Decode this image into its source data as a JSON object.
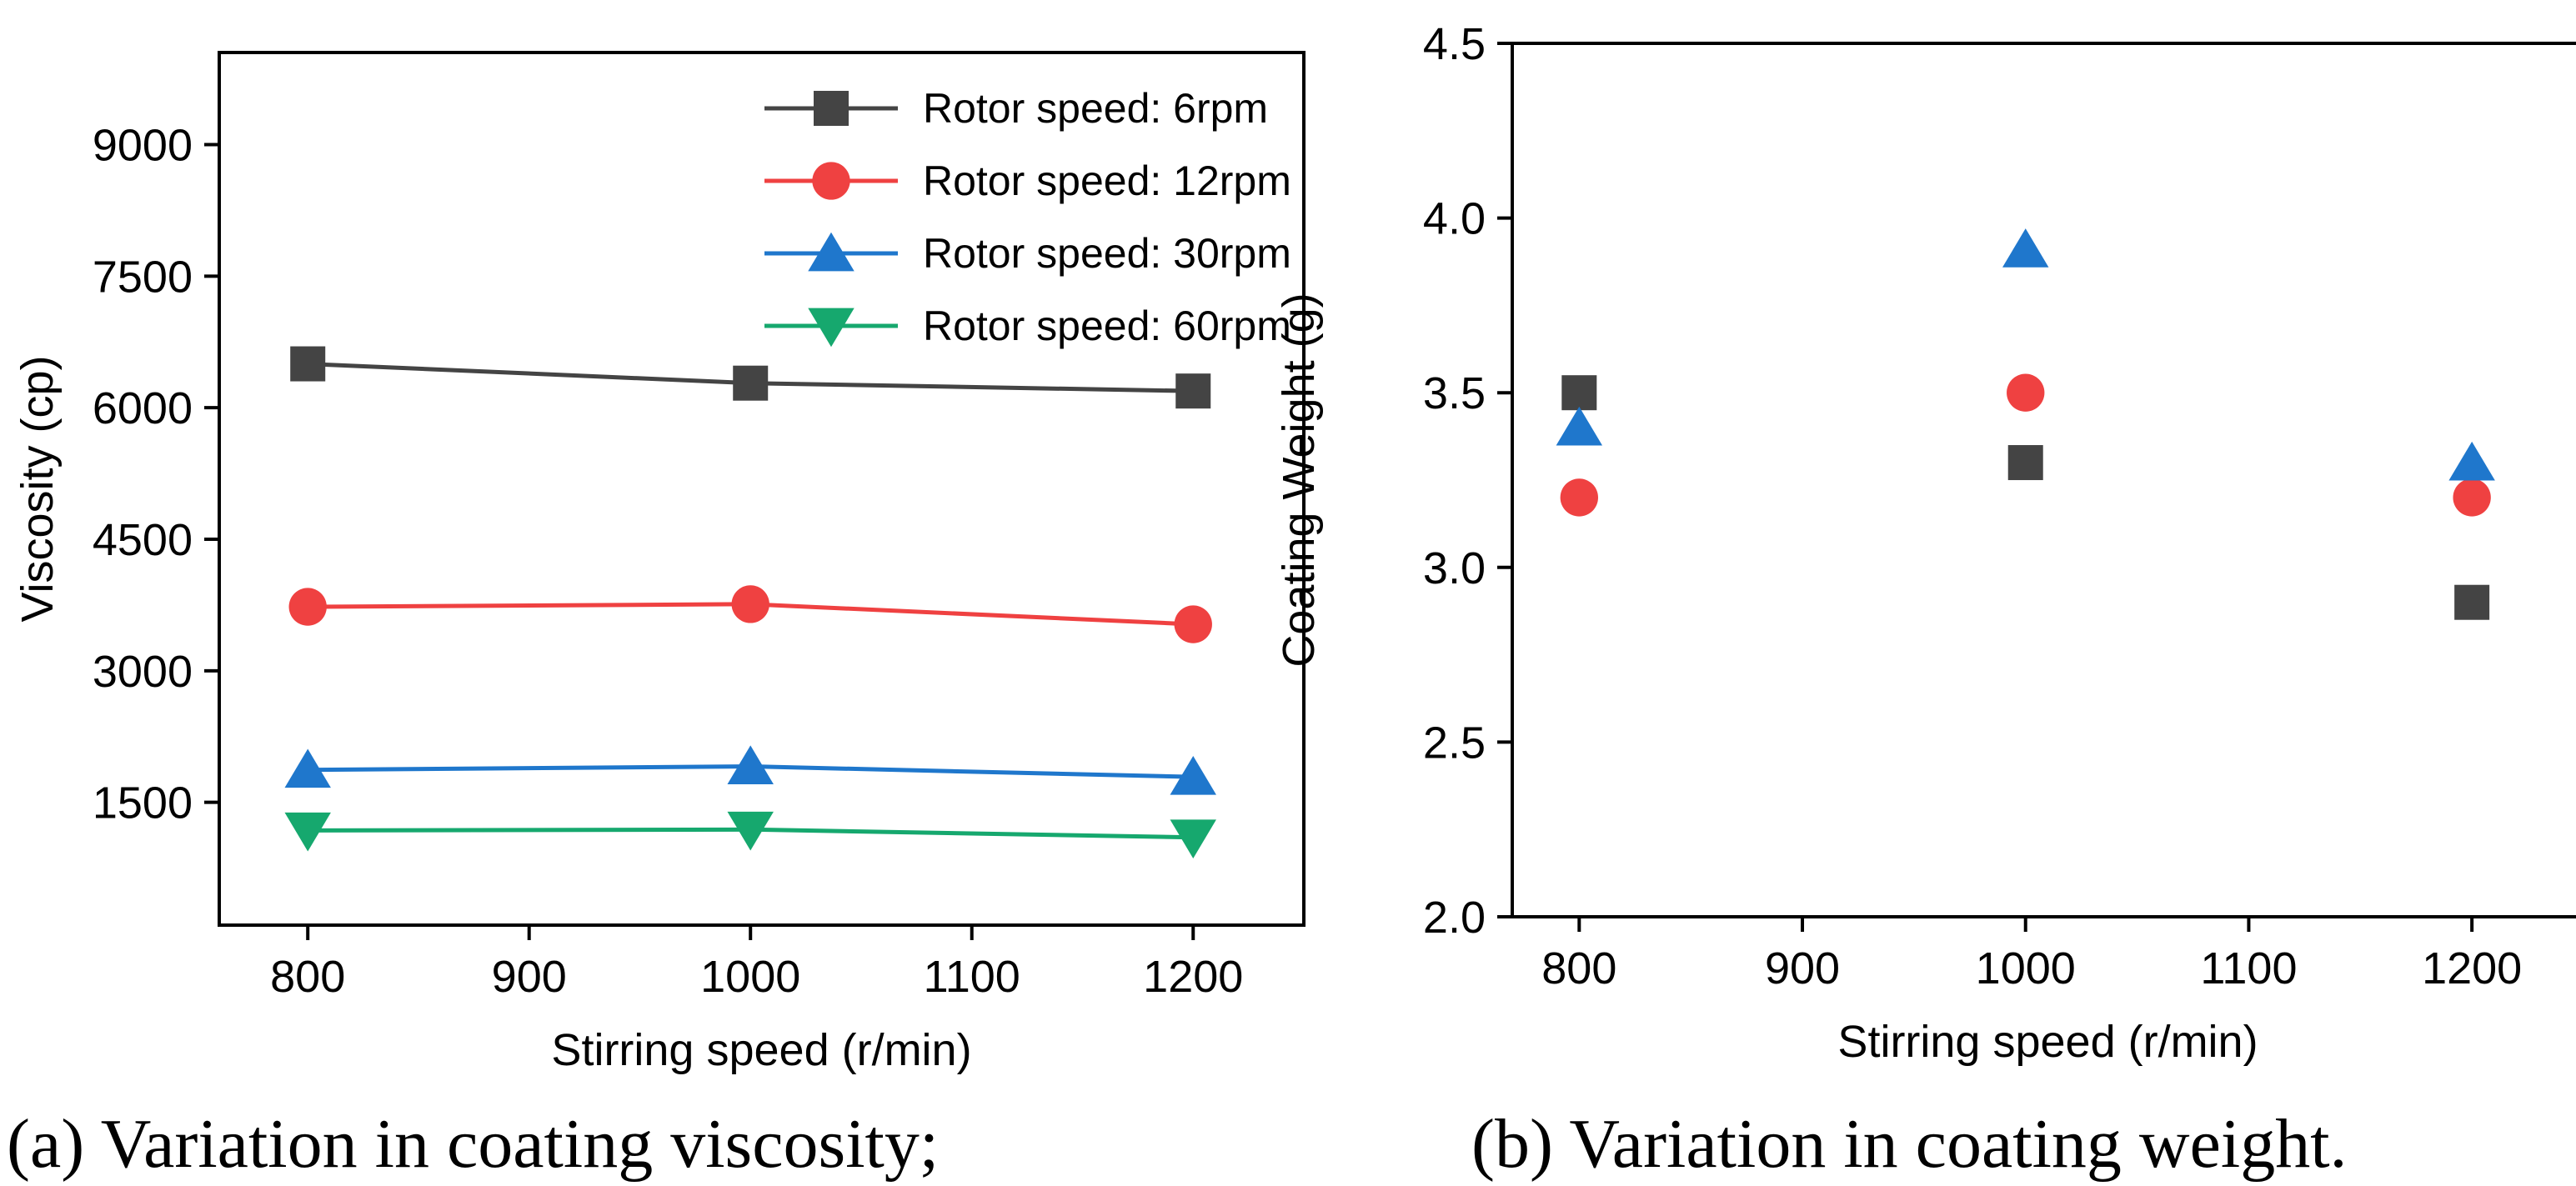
{
  "chart_data": [
    {
      "type": "line",
      "title": "",
      "caption": "(a) Variation in coating viscosity;",
      "xlabel": "Stirring speed (r/min)",
      "ylabel": "Viscosity (cp)",
      "xlim": [
        760,
        1250
      ],
      "ylim": [
        100,
        10050
      ],
      "xticks": [
        800,
        900,
        1000,
        1100,
        1200
      ],
      "yticks": [
        1500,
        3000,
        4500,
        6000,
        7500,
        9000
      ],
      "x": [
        800,
        1000,
        1200
      ],
      "legend_position": "top-right",
      "series": [
        {
          "name": "Rotor speed: 6rpm",
          "color": "#444444",
          "marker": "square",
          "values": [
            6500,
            6280,
            6190
          ]
        },
        {
          "name": "Rotor speed: 12rpm",
          "color": "#ef4141",
          "marker": "circle",
          "values": [
            3730,
            3760,
            3530
          ]
        },
        {
          "name": "Rotor speed: 30rpm",
          "color": "#1f77cc",
          "marker": "triangle-up",
          "values": [
            1870,
            1910,
            1790
          ]
        },
        {
          "name": "Rotor speed: 60rpm",
          "color": "#16a86e",
          "marker": "triangle-down",
          "values": [
            1180,
            1190,
            1100
          ]
        }
      ]
    },
    {
      "type": "scatter",
      "title": "",
      "caption": "(b) Variation in coating weight.",
      "xlabel": "Stirring speed (r/min)",
      "ylabel": "Coating Weight (g)",
      "xlim": [
        770,
        1250
      ],
      "ylim": [
        2.0,
        4.5
      ],
      "xticks": [
        800,
        900,
        1000,
        1100,
        1200
      ],
      "yticks": [
        2.0,
        2.5,
        3.0,
        3.5,
        4.0,
        4.5
      ],
      "ytick_decimals": 1,
      "x": [
        800,
        1000,
        1200
      ],
      "series": [
        {
          "name": "Rotor speed: 6rpm",
          "color": "#444444",
          "marker": "square",
          "values": [
            3.5,
            3.3,
            2.9
          ]
        },
        {
          "name": "Rotor speed: 12rpm",
          "color": "#ef4141",
          "marker": "circle",
          "values": [
            3.2,
            3.5,
            3.2
          ]
        },
        {
          "name": "Rotor speed: 30rpm",
          "color": "#1f77cc",
          "marker": "triangle-up",
          "values": [
            3.4,
            3.91,
            3.3
          ]
        }
      ]
    }
  ]
}
